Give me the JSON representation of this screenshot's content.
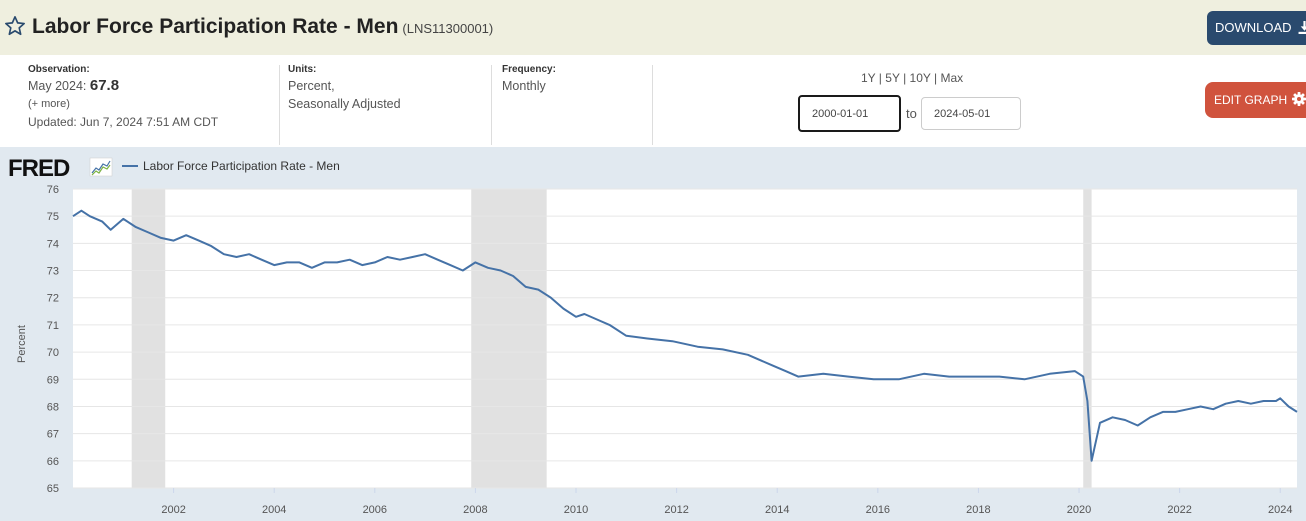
{
  "header": {
    "title": "Labor Force Participation Rate - Men",
    "series_id": "(LNS11300001)",
    "download_label": "DOWNLOAD"
  },
  "info": {
    "observation_label": "Observation:",
    "observation_date": "May 2024:",
    "observation_value": "67.8",
    "more_label": "(+ more)",
    "updated": "Updated: Jun 7, 2024 7:51 AM CDT",
    "units_label": "Units:",
    "units_line1": "Percent,",
    "units_line2": "Seasonally Adjusted",
    "frequency_label": "Frequency:",
    "frequency_value": "Monthly"
  },
  "range": {
    "links": [
      "1Y",
      "5Y",
      "10Y",
      "Max"
    ],
    "separator": " | ",
    "start": "2000-01-01",
    "end": "2024-05-01",
    "to_label": "to"
  },
  "edit_label": "EDIT GRAPH",
  "colors": {
    "line": "#4572a7",
    "recession": "#e1e1e1",
    "plot_bg": "#ffffff",
    "chart_bg": "#e1e9f0",
    "header_bg": "#efefdf",
    "download_bg": "#2a4a6e",
    "edit_bg": "#d0533d"
  },
  "chart_data": {
    "type": "line",
    "logo": "FRED",
    "ylabel": "Percent",
    "ylim": [
      65,
      76
    ],
    "yticks": [
      65,
      66,
      67,
      68,
      69,
      70,
      71,
      72,
      73,
      74,
      75,
      76
    ],
    "xticks": [
      2002,
      2004,
      2006,
      2008,
      2010,
      2012,
      2014,
      2016,
      2018,
      2020,
      2022,
      2024
    ],
    "x_start": "2000-01",
    "x_end": "2024-05",
    "recessions": [
      {
        "start": "2001-03",
        "end": "2001-11"
      },
      {
        "start": "2007-12",
        "end": "2009-06"
      },
      {
        "start": "2020-02",
        "end": "2020-04"
      }
    ],
    "grid": true,
    "legend": "top-left",
    "series": [
      {
        "name": "Labor Force Participation Rate - Men",
        "points": [
          [
            "2000-01",
            75.0
          ],
          [
            "2000-03",
            75.2
          ],
          [
            "2000-05",
            75.0
          ],
          [
            "2000-08",
            74.8
          ],
          [
            "2000-10",
            74.5
          ],
          [
            "2001-01",
            74.9
          ],
          [
            "2001-04",
            74.6
          ],
          [
            "2001-07",
            74.4
          ],
          [
            "2001-10",
            74.2
          ],
          [
            "2002-01",
            74.1
          ],
          [
            "2002-04",
            74.3
          ],
          [
            "2002-07",
            74.1
          ],
          [
            "2002-10",
            73.9
          ],
          [
            "2003-01",
            73.6
          ],
          [
            "2003-04",
            73.5
          ],
          [
            "2003-07",
            73.6
          ],
          [
            "2003-10",
            73.4
          ],
          [
            "2004-01",
            73.2
          ],
          [
            "2004-04",
            73.3
          ],
          [
            "2004-07",
            73.3
          ],
          [
            "2004-10",
            73.1
          ],
          [
            "2005-01",
            73.3
          ],
          [
            "2005-04",
            73.3
          ],
          [
            "2005-07",
            73.4
          ],
          [
            "2005-10",
            73.2
          ],
          [
            "2006-01",
            73.3
          ],
          [
            "2006-04",
            73.5
          ],
          [
            "2006-07",
            73.4
          ],
          [
            "2006-10",
            73.5
          ],
          [
            "2007-01",
            73.6
          ],
          [
            "2007-04",
            73.4
          ],
          [
            "2007-07",
            73.2
          ],
          [
            "2007-10",
            73.0
          ],
          [
            "2008-01",
            73.3
          ],
          [
            "2008-04",
            73.1
          ],
          [
            "2008-07",
            73.0
          ],
          [
            "2008-10",
            72.8
          ],
          [
            "2009-01",
            72.4
          ],
          [
            "2009-04",
            72.3
          ],
          [
            "2009-07",
            72.0
          ],
          [
            "2009-10",
            71.6
          ],
          [
            "2010-01",
            71.3
          ],
          [
            "2010-03",
            71.4
          ],
          [
            "2010-06",
            71.2
          ],
          [
            "2010-09",
            71.0
          ],
          [
            "2011-01",
            70.6
          ],
          [
            "2011-06",
            70.5
          ],
          [
            "2011-12",
            70.4
          ],
          [
            "2012-06",
            70.2
          ],
          [
            "2012-12",
            70.1
          ],
          [
            "2013-06",
            69.9
          ],
          [
            "2013-12",
            69.5
          ],
          [
            "2014-03",
            69.3
          ],
          [
            "2014-06",
            69.1
          ],
          [
            "2014-12",
            69.2
          ],
          [
            "2015-06",
            69.1
          ],
          [
            "2015-12",
            69.0
          ],
          [
            "2016-06",
            69.0
          ],
          [
            "2016-12",
            69.2
          ],
          [
            "2017-06",
            69.1
          ],
          [
            "2017-12",
            69.1
          ],
          [
            "2018-06",
            69.1
          ],
          [
            "2018-12",
            69.0
          ],
          [
            "2019-06",
            69.2
          ],
          [
            "2019-12",
            69.3
          ],
          [
            "2020-02",
            69.1
          ],
          [
            "2020-03",
            68.2
          ],
          [
            "2020-04",
            66.0
          ],
          [
            "2020-06",
            67.4
          ],
          [
            "2020-09",
            67.6
          ],
          [
            "2020-12",
            67.5
          ],
          [
            "2021-03",
            67.3
          ],
          [
            "2021-06",
            67.6
          ],
          [
            "2021-09",
            67.8
          ],
          [
            "2021-12",
            67.8
          ],
          [
            "2022-03",
            67.9
          ],
          [
            "2022-06",
            68.0
          ],
          [
            "2022-09",
            67.9
          ],
          [
            "2022-12",
            68.1
          ],
          [
            "2023-03",
            68.2
          ],
          [
            "2023-06",
            68.1
          ],
          [
            "2023-09",
            68.2
          ],
          [
            "2023-12",
            68.2
          ],
          [
            "2024-01",
            68.3
          ],
          [
            "2024-03",
            68.0
          ],
          [
            "2024-05",
            67.8
          ]
        ]
      }
    ]
  }
}
